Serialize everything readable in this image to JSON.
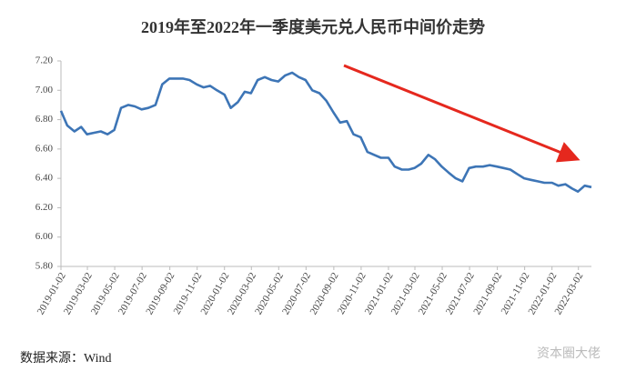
{
  "title": "2019年至2022年一季度美元兑人民币中间价走势",
  "source": "数据来源：Wind",
  "watermark": "资本圈大佬",
  "chart_data": {
    "type": "line",
    "ylim": [
      5.8,
      7.2
    ],
    "yticks": [
      {
        "value": 5.8,
        "label": "5.80"
      },
      {
        "value": 6.0,
        "label": "6.00"
      },
      {
        "value": 6.2,
        "label": "6.20"
      },
      {
        "value": 6.4,
        "label": "6.40"
      },
      {
        "value": 6.6,
        "label": "6.60"
      },
      {
        "value": 6.8,
        "label": "6.80"
      },
      {
        "value": 7.0,
        "label": "7.00"
      },
      {
        "value": 7.2,
        "label": "7.20"
      }
    ],
    "xlim": [
      "2019-01-02",
      "2022-03-31"
    ],
    "xticks": [
      "2019-01-02",
      "2019-03-02",
      "2019-05-02",
      "2019-07-02",
      "2019-09-02",
      "2019-11-02",
      "2020-01-02",
      "2020-03-02",
      "2020-05-02",
      "2020-07-02",
      "2020-09-02",
      "2020-11-02",
      "2021-01-02",
      "2021-03-02",
      "2021-05-02",
      "2021-07-02",
      "2021-09-02",
      "2021-11-02",
      "2022-01-02",
      "2022-03-02"
    ],
    "x": [
      "2019-01-02",
      "2019-01-16",
      "2019-02-01",
      "2019-02-16",
      "2019-03-01",
      "2019-03-16",
      "2019-04-01",
      "2019-04-16",
      "2019-05-01",
      "2019-05-16",
      "2019-06-01",
      "2019-06-16",
      "2019-07-01",
      "2019-07-16",
      "2019-08-01",
      "2019-08-16",
      "2019-09-01",
      "2019-09-16",
      "2019-10-01",
      "2019-10-16",
      "2019-11-01",
      "2019-11-16",
      "2019-12-01",
      "2019-12-16",
      "2020-01-02",
      "2020-01-16",
      "2020-02-01",
      "2020-02-16",
      "2020-03-01",
      "2020-03-16",
      "2020-04-01",
      "2020-04-16",
      "2020-05-01",
      "2020-05-16",
      "2020-06-01",
      "2020-06-16",
      "2020-07-01",
      "2020-07-16",
      "2020-08-01",
      "2020-08-16",
      "2020-09-01",
      "2020-09-16",
      "2020-10-01",
      "2020-10-16",
      "2020-11-01",
      "2020-11-16",
      "2020-12-01",
      "2020-12-16",
      "2021-01-02",
      "2021-01-16",
      "2021-02-01",
      "2021-02-16",
      "2021-03-01",
      "2021-03-16",
      "2021-04-01",
      "2021-04-16",
      "2021-05-01",
      "2021-05-16",
      "2021-06-01",
      "2021-06-16",
      "2021-07-01",
      "2021-07-16",
      "2021-08-01",
      "2021-08-16",
      "2021-09-01",
      "2021-09-16",
      "2021-10-01",
      "2021-10-16",
      "2021-11-01",
      "2021-11-16",
      "2021-12-01",
      "2021-12-16",
      "2022-01-02",
      "2022-01-16",
      "2022-02-01",
      "2022-02-16",
      "2022-03-01",
      "2022-03-16",
      "2022-03-31"
    ],
    "series": [
      {
        "color": "#3d75b6",
        "values": [
          6.86,
          6.76,
          6.72,
          6.75,
          6.7,
          6.71,
          6.72,
          6.7,
          6.73,
          6.88,
          6.9,
          6.89,
          6.87,
          6.88,
          6.9,
          7.04,
          7.08,
          7.08,
          7.08,
          7.07,
          7.04,
          7.02,
          7.03,
          7.0,
          6.97,
          6.88,
          6.92,
          6.99,
          6.98,
          7.07,
          7.09,
          7.07,
          7.06,
          7.1,
          7.12,
          7.09,
          7.07,
          7.0,
          6.98,
          6.93,
          6.85,
          6.78,
          6.79,
          6.7,
          6.68,
          6.58,
          6.56,
          6.54,
          6.54,
          6.48,
          6.46,
          6.46,
          6.47,
          6.5,
          6.56,
          6.53,
          6.48,
          6.44,
          6.4,
          6.38,
          6.47,
          6.48,
          6.48,
          6.49,
          6.48,
          6.47,
          6.46,
          6.43,
          6.4,
          6.39,
          6.38,
          6.37,
          6.37,
          6.35,
          6.36,
          6.33,
          6.31,
          6.35,
          6.34
        ]
      }
    ]
  }
}
